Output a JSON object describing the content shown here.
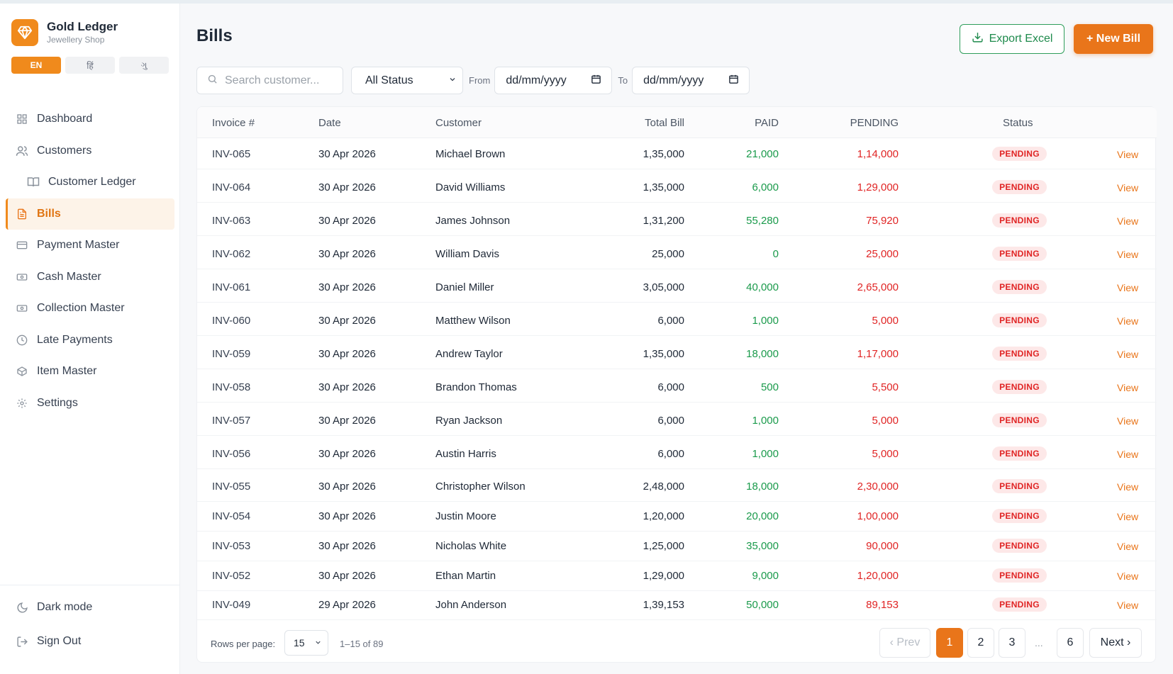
{
  "brand": {
    "name": "Gold Ledger",
    "subtitle": "Jewellery Shop"
  },
  "languages": [
    {
      "label": "EN",
      "active": true
    },
    {
      "label": "हिं",
      "active": false
    },
    {
      "label": "ગુ",
      "active": false
    }
  ],
  "nav": [
    {
      "label": "Dashboard",
      "icon": "grid-icon",
      "sub": false,
      "active": false
    },
    {
      "label": "Customers",
      "icon": "users-icon",
      "sub": false,
      "active": false
    },
    {
      "label": "Customer Ledger",
      "icon": "book-icon",
      "sub": true,
      "active": false
    },
    {
      "label": "Bills",
      "icon": "file-text-icon",
      "sub": false,
      "active": true
    },
    {
      "label": "Payment Master",
      "icon": "credit-card-icon",
      "sub": false,
      "active": false
    },
    {
      "label": "Cash Master",
      "icon": "banknote-icon",
      "sub": false,
      "active": false
    },
    {
      "label": "Collection Master",
      "icon": "wallet-icon",
      "sub": false,
      "active": false
    },
    {
      "label": "Late Payments",
      "icon": "clock-icon",
      "sub": false,
      "active": false
    },
    {
      "label": "Item Master",
      "icon": "box-icon",
      "sub": false,
      "active": false
    },
    {
      "label": "Settings",
      "icon": "gear-icon",
      "sub": false,
      "active": false
    }
  ],
  "bottom": {
    "dark_mode": "Dark mode",
    "sign_out": "Sign Out"
  },
  "page": {
    "title": "Bills",
    "export_label": "Export Excel",
    "new_label": "+ New Bill"
  },
  "filters": {
    "search_placeholder": "Search customer...",
    "status_value": "All Status",
    "from_label": "From",
    "to_label": "To",
    "date_placeholder": "dd/mm/yyyy"
  },
  "table": {
    "columns": [
      "Invoice #",
      "Date",
      "Customer",
      "Total Bill",
      "PAID",
      "PENDING",
      "Status"
    ],
    "view_label": "View",
    "rows": [
      {
        "invoice": "INV-065",
        "date": "30 Apr 2026",
        "customer": "Michael Brown",
        "total": "1,35,000",
        "paid": "21,000",
        "pending": "1,14,000",
        "status": "PENDING"
      },
      {
        "invoice": "INV-064",
        "date": "30 Apr 2026",
        "customer": "David Williams",
        "total": "1,35,000",
        "paid": "6,000",
        "pending": "1,29,000",
        "status": "PENDING"
      },
      {
        "invoice": "INV-063",
        "date": "30 Apr 2026",
        "customer": "James Johnson",
        "total": "1,31,200",
        "paid": "55,280",
        "pending": "75,920",
        "status": "PENDING"
      },
      {
        "invoice": "INV-062",
        "date": "30 Apr 2026",
        "customer": "William Davis",
        "total": "25,000",
        "paid": "0",
        "pending": "25,000",
        "status": "PENDING"
      },
      {
        "invoice": "INV-061",
        "date": "30 Apr 2026",
        "customer": "Daniel Miller",
        "total": "3,05,000",
        "paid": "40,000",
        "pending": "2,65,000",
        "status": "PENDING"
      },
      {
        "invoice": "INV-060",
        "date": "30 Apr 2026",
        "customer": "Matthew Wilson",
        "total": "6,000",
        "paid": "1,000",
        "pending": "5,000",
        "status": "PENDING"
      },
      {
        "invoice": "INV-059",
        "date": "30 Apr 2026",
        "customer": "Andrew Taylor",
        "total": "1,35,000",
        "paid": "18,000",
        "pending": "1,17,000",
        "status": "PENDING"
      },
      {
        "invoice": "INV-058",
        "date": "30 Apr 2026",
        "customer": "Brandon Thomas",
        "total": "6,000",
        "paid": "500",
        "pending": "5,500",
        "status": "PENDING"
      },
      {
        "invoice": "INV-057",
        "date": "30 Apr 2026",
        "customer": "Ryan Jackson",
        "total": "6,000",
        "paid": "1,000",
        "pending": "5,000",
        "status": "PENDING"
      },
      {
        "invoice": "INV-056",
        "date": "30 Apr 2026",
        "customer": "Austin Harris",
        "total": "6,000",
        "paid": "1,000",
        "pending": "5,000",
        "status": "PENDING"
      },
      {
        "invoice": "INV-055",
        "date": "30 Apr 2026",
        "customer": "Christopher Wilson",
        "total": "2,48,000",
        "paid": "18,000",
        "pending": "2,30,000",
        "status": "PENDING"
      },
      {
        "invoice": "INV-054",
        "date": "30 Apr 2026",
        "customer": "Justin Moore",
        "total": "1,20,000",
        "paid": "20,000",
        "pending": "1,00,000",
        "status": "PENDING"
      },
      {
        "invoice": "INV-053",
        "date": "30 Apr 2026",
        "customer": "Nicholas White",
        "total": "1,25,000",
        "paid": "35,000",
        "pending": "90,000",
        "status": "PENDING"
      },
      {
        "invoice": "INV-052",
        "date": "30 Apr 2026",
        "customer": "Ethan Martin",
        "total": "1,29,000",
        "paid": "9,000",
        "pending": "1,20,000",
        "status": "PENDING"
      },
      {
        "invoice": "INV-049",
        "date": "29 Apr 2026",
        "customer": "John Anderson",
        "total": "1,39,153",
        "paid": "50,000",
        "pending": "89,153",
        "status": "PENDING"
      }
    ]
  },
  "pagination": {
    "rows_per_page_label": "Rows per page:",
    "rows_per_page": "15",
    "range": "1–15 of 89",
    "prev": "‹ Prev",
    "next": "Next ›",
    "pages": [
      "1",
      "2",
      "3",
      "6"
    ],
    "ellipsis": "...",
    "current": "1"
  },
  "colors": {
    "accent": "#e9751a",
    "paid": "#1a9a4b",
    "pending": "#e02424",
    "export": "#1e8a4c"
  }
}
